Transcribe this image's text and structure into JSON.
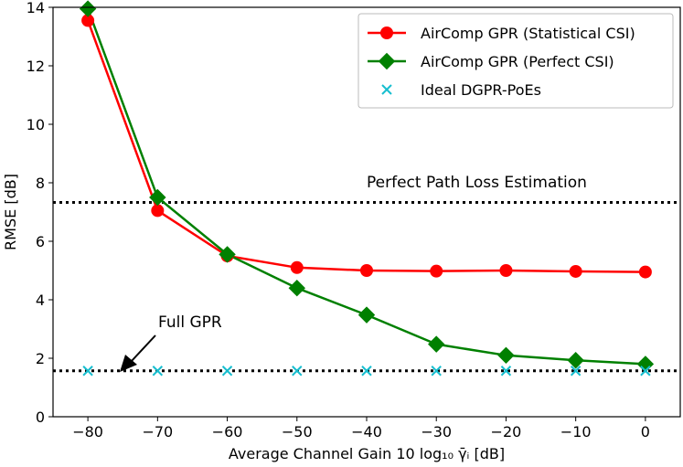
{
  "chart_data": {
    "type": "line",
    "xlabel": "Average Channel Gain 10 log₁₀ γ̄ᵢ [dB]",
    "ylabel": "RMSE [dB]",
    "xlim": [
      -85,
      5
    ],
    "ylim": [
      0,
      14
    ],
    "xticks": [
      -80,
      -70,
      -60,
      -50,
      -40,
      -30,
      -20,
      -10,
      0
    ],
    "xtick_labels": [
      "−80",
      "−70",
      "−60",
      "−50",
      "−40",
      "−30",
      "−20",
      "−10",
      "0"
    ],
    "yticks": [
      0,
      2,
      4,
      6,
      8,
      10,
      12,
      14
    ],
    "ytick_labels": [
      "0",
      "2",
      "4",
      "6",
      "8",
      "10",
      "12",
      "14"
    ],
    "grid": false,
    "legend_position": "top-right",
    "x": [
      -80,
      -70,
      -60,
      -50,
      -40,
      -30,
      -20,
      -10,
      0
    ],
    "series": [
      {
        "name": "AirComp GPR (Statistical CSI)",
        "color": "#ff0000",
        "marker": "circle",
        "values": [
          13.55,
          7.05,
          5.5,
          5.1,
          5.0,
          4.98,
          5.0,
          4.97,
          4.95
        ]
      },
      {
        "name": "AirComp GPR (Perfect CSI)",
        "color": "#008000",
        "marker": "diamond",
        "values": [
          13.95,
          7.5,
          5.55,
          4.4,
          3.48,
          2.48,
          2.1,
          1.93,
          1.8
        ]
      },
      {
        "name": "Ideal DGPR-PoEs",
        "color": "#17becf",
        "marker": "x",
        "values": [
          1.57,
          1.57,
          1.57,
          1.57,
          1.57,
          1.57,
          1.57,
          1.57,
          1.57
        ]
      }
    ],
    "reference_lines": [
      {
        "value": 7.33,
        "style": "dotted",
        "label": "Perfect Path Loss Estimation"
      },
      {
        "value": 1.57,
        "style": "dotted",
        "label": "Full GPR"
      }
    ]
  }
}
